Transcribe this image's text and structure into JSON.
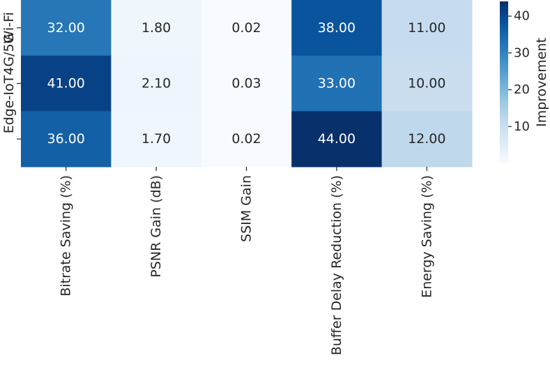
{
  "chart_data": {
    "type": "heatmap",
    "title": "",
    "xlabel": "",
    "ylabel": "",
    "x_categories": [
      "Bitrate Saving (%)",
      "PSNR Gain (dB)",
      "SSIM Gain",
      "Buffer Delay Reduction (%)",
      "Energy Saving (%)"
    ],
    "y_categories": [
      "Wi-Fi",
      "Edge-IoT4G/5G",
      ""
    ],
    "values": [
      [
        32.0,
        1.8,
        0.02,
        38.0,
        11.0
      ],
      [
        41.0,
        2.1,
        0.03,
        33.0,
        10.0
      ],
      [
        36.0,
        1.7,
        0.02,
        44.0,
        12.0
      ]
    ],
    "value_labels": [
      [
        "32.00",
        "1.80",
        "0.02",
        "38.00",
        "11.00"
      ],
      [
        "41.00",
        "2.10",
        "0.03",
        "33.00",
        "10.00"
      ],
      [
        "36.00",
        "1.70",
        "0.02",
        "44.00",
        "12.00"
      ]
    ],
    "colormap": "Blues",
    "colorbar": {
      "label": "Improvement",
      "range": [
        0.02,
        44.0
      ],
      "ticks": [
        10,
        20,
        30,
        40
      ],
      "tick_labels": [
        "10",
        "20",
        "30",
        "40"
      ],
      "placement": "right"
    },
    "grid": false,
    "legend": "none"
  }
}
